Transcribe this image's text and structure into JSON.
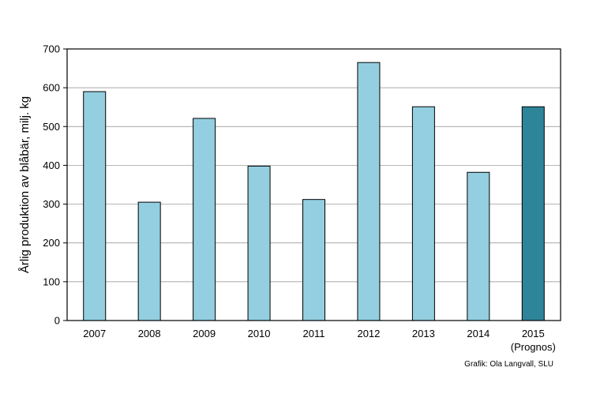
{
  "chart_data": {
    "type": "bar",
    "categories": [
      "2007",
      "2008",
      "2009",
      "2010",
      "2011",
      "2012",
      "2013",
      "2014",
      "2015"
    ],
    "category_sublabels": [
      "",
      "",
      "",
      "",
      "",
      "",
      "",
      "",
      "(Prognos)"
    ],
    "values": [
      590,
      305,
      521,
      398,
      312,
      665,
      551,
      382,
      551
    ],
    "highlight_index": 8,
    "title": "",
    "xlabel": "",
    "ylabel": "Årlig produktion av blåbär, milj. kg",
    "ylim": [
      0,
      700
    ],
    "yticks": [
      0,
      100,
      200,
      300,
      400,
      500,
      600,
      700
    ],
    "grid": true,
    "colors": {
      "bar": "#93cfe0",
      "highlight": "#2e8499",
      "outline": "#000000",
      "grid": "#8c8c8c"
    }
  },
  "credit": "Grafik: Ola Langvall, SLU"
}
